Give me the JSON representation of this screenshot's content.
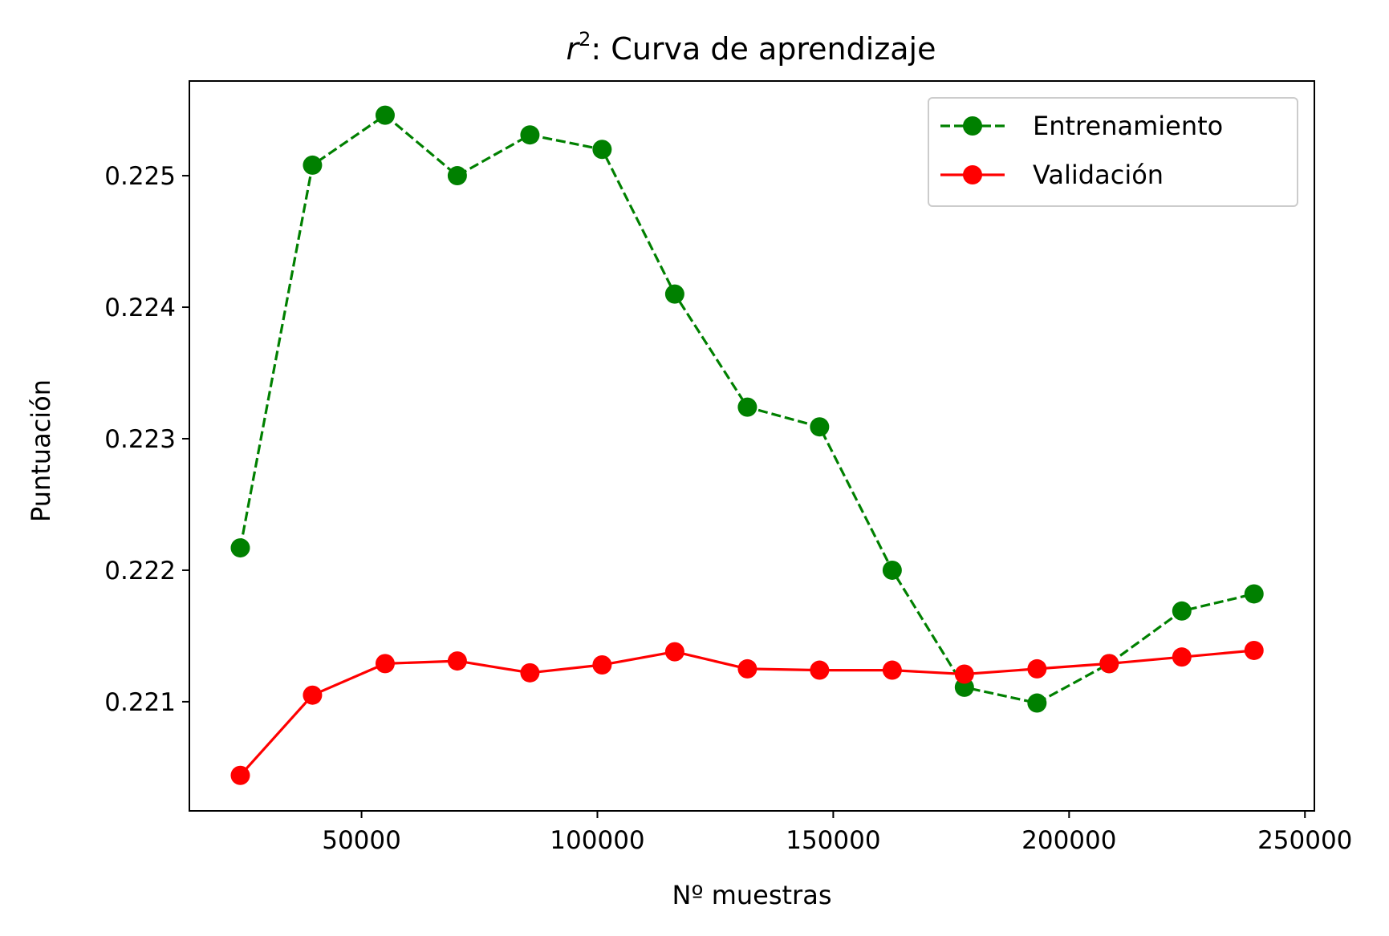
{
  "chart_data": {
    "type": "line",
    "title_prefix": "r",
    "title_superscript": "2",
    "title_suffix": ": Curva de aprendizaje",
    "xlabel": "Nº muestras",
    "ylabel": "Puntuación",
    "xlim": [
      13500,
      252000
    ],
    "ylim": [
      0.22017,
      0.22572
    ],
    "grid": false,
    "legend_position": "top-right",
    "x": [
      24300,
      39600,
      55000,
      70300,
      85700,
      101000,
      116400,
      131800,
      147100,
      162500,
      177800,
      193200,
      208500,
      223900,
      239200
    ],
    "x_tick_values": [
      50000,
      100000,
      150000,
      200000,
      250000
    ],
    "x_tick_labels": [
      "50000",
      "100000",
      "150000",
      "200000",
      "250000"
    ],
    "y_tick_values": [
      0.221,
      0.222,
      0.223,
      0.224,
      0.225
    ],
    "y_tick_labels": [
      "0.221",
      "0.222",
      "0.223",
      "0.224",
      "0.225"
    ],
    "series": [
      {
        "name": "Entrenamiento",
        "color": "#008000",
        "line_style": "dashed",
        "marker": "circle",
        "values": [
          0.22217,
          0.22508,
          0.22546,
          0.225,
          0.22531,
          0.2252,
          0.2241,
          0.22324,
          0.22309,
          0.222,
          0.22111,
          0.22099,
          0.22129,
          0.22169,
          0.22182
        ]
      },
      {
        "name": "Validación",
        "color": "#ff0000",
        "line_style": "solid",
        "marker": "circle",
        "values": [
          0.22044,
          0.22105,
          0.22129,
          0.22131,
          0.22122,
          0.22128,
          0.22138,
          0.22125,
          0.22124,
          0.22124,
          0.22121,
          0.22125,
          0.22129,
          0.22134,
          0.22139
        ]
      }
    ]
  }
}
